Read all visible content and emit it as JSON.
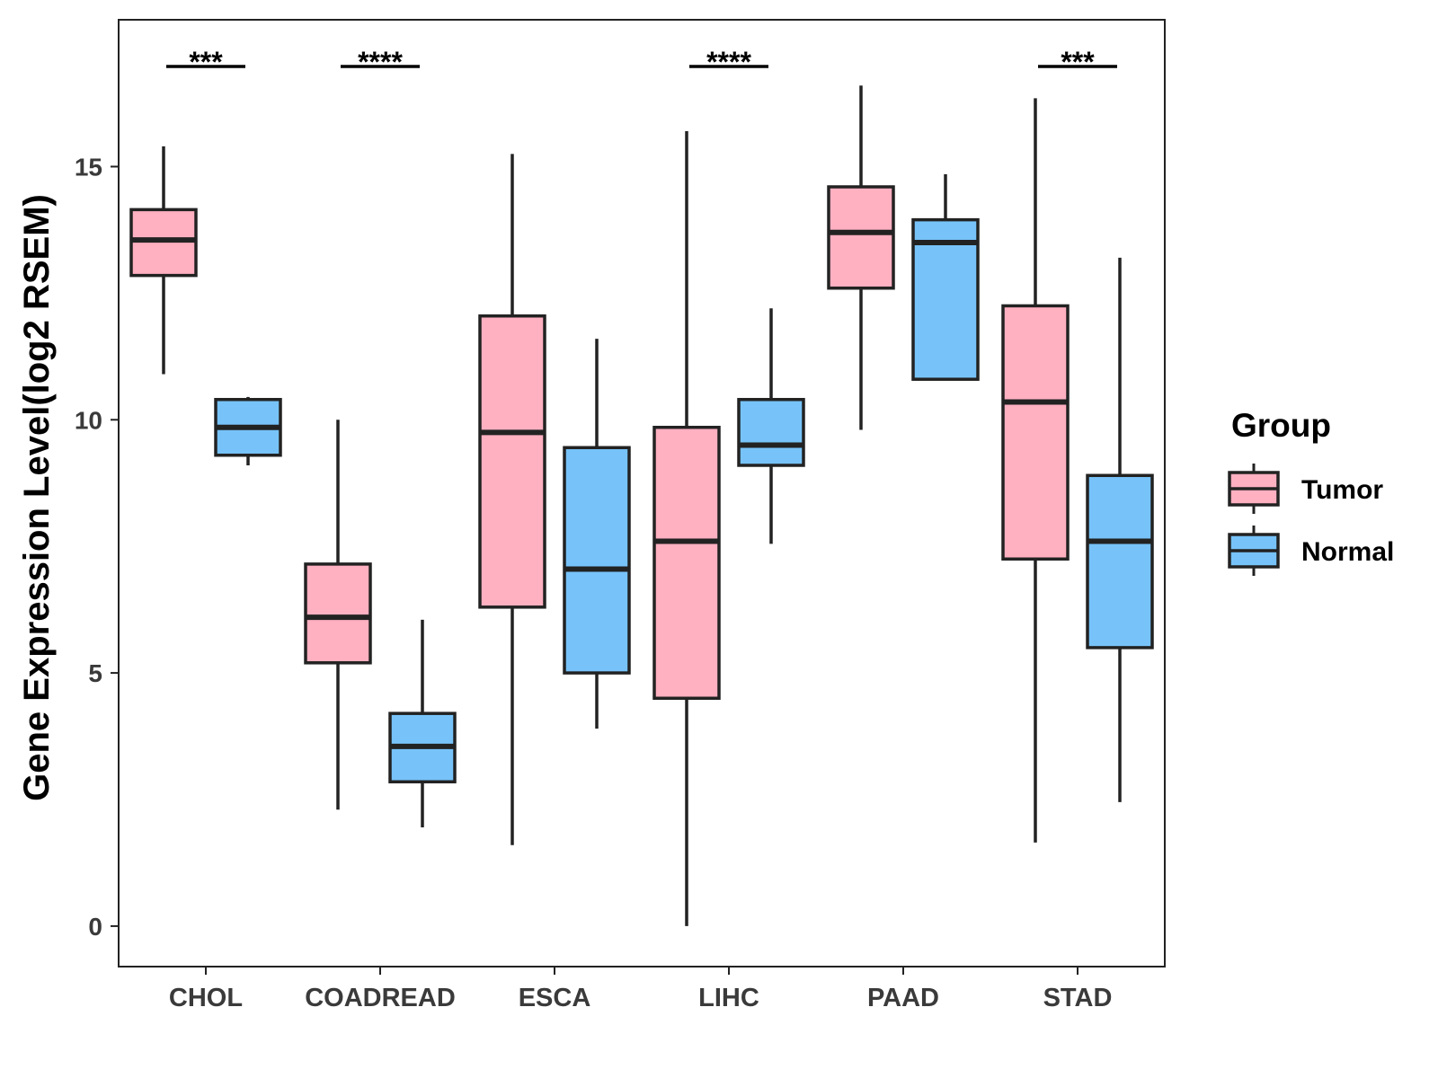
{
  "chart_data": {
    "type": "box",
    "title": "",
    "xlabel": "",
    "ylabel": "Gene Expression Level(log2 RSEM)",
    "ylim": [
      -0.8,
      17.9
    ],
    "yticks": [
      0,
      5,
      10,
      15
    ],
    "grid": false,
    "categories": [
      "CHOL",
      "COADREAD",
      "ESCA",
      "LIHC",
      "PAAD",
      "STAD"
    ],
    "series": [
      {
        "name": "Tumor",
        "color": "#FFB0C1",
        "boxes": [
          {
            "min": 10.9,
            "q1": 12.85,
            "median": 13.55,
            "q3": 14.15,
            "max": 15.4
          },
          {
            "min": 2.3,
            "q1": 5.2,
            "median": 6.1,
            "q3": 7.15,
            "max": 10.0
          },
          {
            "min": 1.6,
            "q1": 6.3,
            "median": 9.75,
            "q3": 12.05,
            "max": 15.25
          },
          {
            "min": 0.0,
            "q1": 4.5,
            "median": 7.6,
            "q3": 9.85,
            "max": 15.7
          },
          {
            "min": 9.8,
            "q1": 12.6,
            "median": 13.7,
            "q3": 14.6,
            "max": 16.6
          },
          {
            "min": 1.65,
            "q1": 7.25,
            "median": 10.35,
            "q3": 12.25,
            "max": 16.35
          }
        ]
      },
      {
        "name": "Normal",
        "color": "#77C3F9",
        "boxes": [
          {
            "min": 9.1,
            "q1": 9.3,
            "median": 9.85,
            "q3": 10.4,
            "max": 10.45
          },
          {
            "min": 1.95,
            "q1": 2.85,
            "median": 3.55,
            "q3": 4.2,
            "max": 6.05
          },
          {
            "min": 3.9,
            "q1": 5.0,
            "median": 7.05,
            "q3": 9.45,
            "max": 11.6
          },
          {
            "min": 7.55,
            "q1": 9.1,
            "median": 9.5,
            "q3": 10.4,
            "max": 12.2
          },
          {
            "min": 10.8,
            "q1": 10.8,
            "median": 13.5,
            "q3": 13.95,
            "max": 14.85
          },
          {
            "min": 2.45,
            "q1": 5.5,
            "median": 7.6,
            "q3": 8.9,
            "max": 13.2
          }
        ]
      }
    ],
    "annotations": [
      {
        "category": "CHOL",
        "label": "***"
      },
      {
        "category": "COADREAD",
        "label": "****"
      },
      {
        "category": "LIHC",
        "label": "****"
      },
      {
        "category": "STAD",
        "label": "***"
      }
    ],
    "legend": {
      "title": "Group",
      "position": "right",
      "entries": [
        "Tumor",
        "Normal"
      ]
    }
  }
}
